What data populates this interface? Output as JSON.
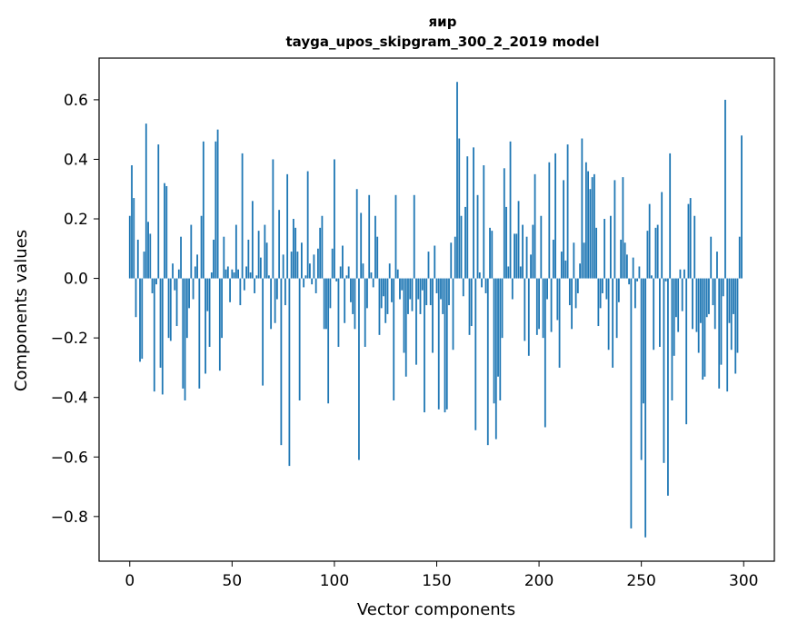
{
  "chart_data": {
    "type": "bar",
    "title_line1": "яир",
    "title_line2": "tayga_upos_skipgram_300_2_2019 model",
    "xlabel": "Vector components",
    "ylabel": "Components values",
    "xlim": [
      -15,
      315
    ],
    "ylim": [
      -0.95,
      0.74
    ],
    "xticks": [
      0,
      50,
      100,
      150,
      200,
      250,
      300
    ],
    "xtick_labels": [
      "0",
      "50",
      "100",
      "150",
      "200",
      "250",
      "300"
    ],
    "yticks": [
      -0.8,
      -0.6,
      -0.4,
      -0.2,
      0.0,
      0.2,
      0.4,
      0.6
    ],
    "ytick_labels": [
      "−0.8",
      "−0.6",
      "−0.4",
      "−0.2",
      "0.0",
      "0.2",
      "0.4",
      "0.6"
    ],
    "bar_color": "#1f77b4",
    "values": [
      0.21,
      0.38,
      0.27,
      -0.13,
      0.13,
      -0.28,
      -0.27,
      0.09,
      0.52,
      0.19,
      0.15,
      -0.05,
      -0.38,
      -0.02,
      0.45,
      -0.3,
      -0.39,
      0.32,
      0.31,
      -0.2,
      -0.21,
      0.05,
      -0.04,
      -0.16,
      0.03,
      0.14,
      -0.37,
      -0.41,
      -0.2,
      -0.1,
      0.18,
      -0.07,
      0.04,
      0.08,
      -0.37,
      0.21,
      0.46,
      -0.32,
      -0.11,
      -0.23,
      0.02,
      0.13,
      0.46,
      0.5,
      -0.31,
      -0.2,
      0.14,
      0.03,
      0.04,
      -0.08,
      0.03,
      0.02,
      0.18,
      0.03,
      -0.09,
      0.42,
      -0.04,
      0.04,
      0.13,
      0.02,
      0.26,
      -0.05,
      0.01,
      0.16,
      0.07,
      -0.36,
      0.18,
      0.12,
      0.01,
      -0.17,
      0.4,
      -0.15,
      -0.07,
      0.23,
      -0.56,
      0.08,
      -0.09,
      0.35,
      -0.63,
      0.09,
      0.2,
      0.17,
      0.09,
      -0.41,
      0.12,
      -0.03,
      0.01,
      0.36,
      0.05,
      -0.02,
      0.08,
      -0.05,
      0.1,
      0.17,
      0.21,
      -0.17,
      -0.17,
      -0.42,
      -0.1,
      0.1,
      0.4,
      -0.01,
      -0.23,
      0.04,
      0.11,
      -0.15,
      0.01,
      0.04,
      -0.08,
      -0.12,
      -0.17,
      0.3,
      -0.61,
      0.22,
      0.05,
      -0.23,
      -0.1,
      0.28,
      0.02,
      -0.03,
      0.21,
      0.14,
      -0.19,
      -0.1,
      -0.06,
      -0.15,
      -0.12,
      0.05,
      -0.08,
      -0.41,
      0.28,
      0.03,
      -0.07,
      -0.04,
      -0.25,
      -0.33,
      -0.12,
      -0.07,
      -0.11,
      0.28,
      -0.29,
      -0.07,
      -0.12,
      -0.04,
      -0.45,
      -0.09,
      0.09,
      -0.09,
      -0.25,
      0.11,
      -0.05,
      -0.44,
      -0.07,
      -0.12,
      -0.45,
      -0.44,
      -0.09,
      0.12,
      -0.24,
      0.14,
      0.66,
      0.47,
      0.21,
      -0.06,
      0.24,
      0.41,
      -0.19,
      -0.16,
      0.44,
      -0.51,
      0.28,
      0.02,
      -0.03,
      0.38,
      -0.05,
      -0.56,
      0.17,
      0.16,
      -0.42,
      -0.54,
      -0.33,
      -0.41,
      -0.2,
      0.37,
      0.24,
      0.04,
      0.46,
      -0.07,
      0.15,
      0.15,
      0.26,
      0.04,
      0.18,
      -0.21,
      0.14,
      -0.26,
      0.08,
      0.18,
      0.35,
      -0.19,
      -0.17,
      0.21,
      -0.2,
      -0.5,
      -0.07,
      0.39,
      -0.18,
      0.13,
      0.42,
      -0.14,
      -0.3,
      0.09,
      0.33,
      0.06,
      0.45,
      -0.09,
      -0.17,
      0.12,
      -0.1,
      -0.05,
      0.05,
      0.47,
      0.12,
      0.39,
      0.36,
      0.3,
      0.34,
      0.35,
      0.17,
      -0.16,
      -0.1,
      -0.05,
      0.2,
      -0.07,
      -0.24,
      0.21,
      -0.3,
      0.33,
      -0.2,
      -0.08,
      0.13,
      0.34,
      0.12,
      0.08,
      -0.02,
      -0.84,
      0.07,
      -0.1,
      -0.01,
      0.04,
      -0.61,
      -0.42,
      -0.87,
      0.16,
      0.25,
      0.01,
      -0.24,
      0.17,
      0.18,
      -0.23,
      0.29,
      -0.62,
      -0.01,
      -0.73,
      0.42,
      -0.41,
      -0.26,
      -0.13,
      -0.18,
      0.03,
      -0.11,
      0.03,
      -0.49,
      0.25,
      0.27,
      -0.17,
      0.21,
      -0.18,
      -0.25,
      -0.15,
      -0.34,
      -0.33,
      -0.13,
      -0.12,
      0.14,
      -0.09,
      -0.17,
      0.09,
      -0.37,
      -0.29,
      -0.06,
      0.6,
      -0.38,
      -0.15,
      -0.24,
      -0.12,
      -0.32,
      -0.25,
      0.14,
      0.48
    ]
  }
}
